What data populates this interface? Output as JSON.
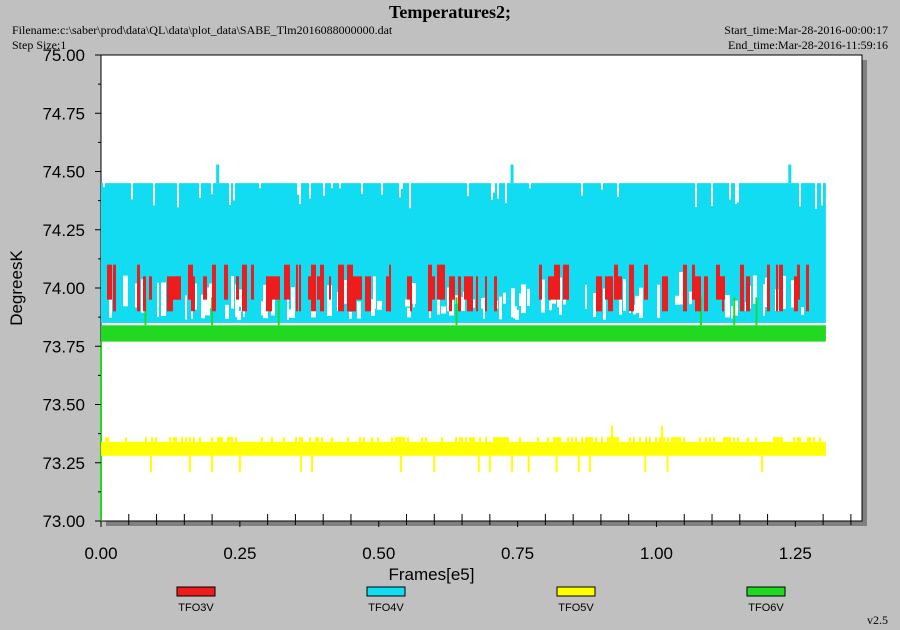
{
  "header": {
    "title": "Temperatures2;",
    "filename": "Filename:c:\\saber\\prod\\data\\QL\\data\\plot_data\\SABE_Tlm2016088000000.dat",
    "step_size": "Step Size:1",
    "start_time": "Start_time:Mar-28-2016-00:00:17",
    "end_time": "End_time:Mar-28-2016-11:59:16"
  },
  "footer": {
    "version": "v2.5"
  },
  "chart_data": {
    "type": "line",
    "xlabel": "Frames[e5]",
    "ylabel": "DegreesK",
    "xlim": [
      0.0,
      1.37
    ],
    "ylim": [
      73.0,
      75.0
    ],
    "x_ticks": [
      "0.00",
      "0.25",
      "0.50",
      "0.75",
      "1.00",
      "1.25"
    ],
    "y_ticks": [
      "73.00",
      "73.25",
      "73.50",
      "73.75",
      "74.00",
      "74.25",
      "74.50",
      "74.75",
      "75.00"
    ],
    "x_range_data": [
      0.0,
      1.305
    ],
    "legend_position": "bottom",
    "series": [
      {
        "name": "TFO3V",
        "color": "#ee1c1c",
        "levels": [
          73.9,
          74.0,
          74.1
        ],
        "typical": [
          73.95,
          74.05
        ]
      },
      {
        "name": "TFO4V",
        "color": "#12dcf2",
        "levels": [
          73.85,
          74.45
        ],
        "typical": [
          73.85,
          74.45
        ],
        "peak": 74.53
      },
      {
        "name": "TFO5V",
        "color": "#ffff00",
        "levels": [
          73.21,
          73.34
        ],
        "typical": [
          73.28,
          73.34
        ],
        "peak": 73.41
      },
      {
        "name": "TFO6V",
        "color": "#22d922",
        "levels": [
          73.77,
          73.84
        ],
        "typical": [
          73.77,
          73.84
        ],
        "peak": 73.97
      }
    ]
  }
}
